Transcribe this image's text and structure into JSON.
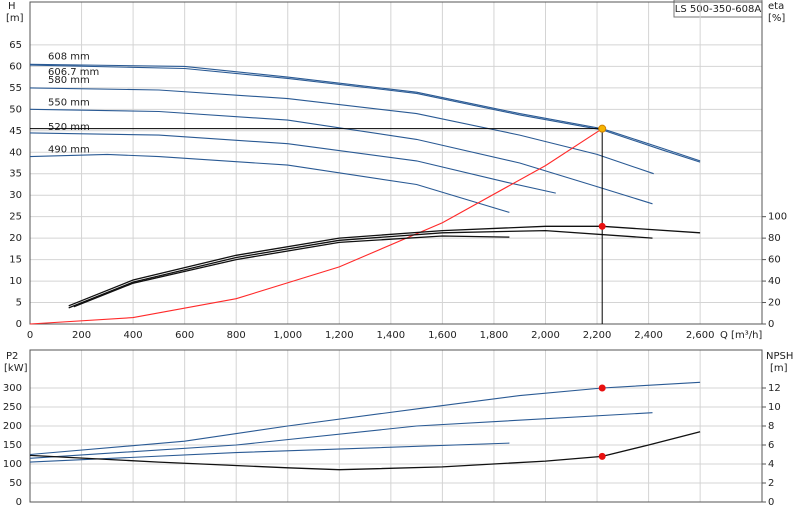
{
  "chart_data": [
    {
      "type": "line",
      "title": "LS 500-350-608A",
      "y_label": "H",
      "y_unit": "[m]",
      "y2_label": "eta",
      "y2_unit": "[%]",
      "x_label": "Q [m³/h]",
      "xlim": [
        0,
        2840
      ],
      "ylim": [
        0,
        75
      ],
      "y2lim": [
        0,
        300
      ],
      "xticks": [
        0,
        200,
        400,
        600,
        800,
        {
          "value": 1000,
          "label": "1,000"
        },
        {
          "value": 1200,
          "label": "1,200"
        },
        {
          "value": 1400,
          "label": "1,400"
        },
        {
          "value": 1600,
          "label": "1,600"
        },
        {
          "value": 1800,
          "label": "1,800"
        },
        {
          "value": 2000,
          "label": "2,000"
        },
        {
          "value": 2200,
          "label": "2,200"
        },
        {
          "value": 2400,
          "label": "2,400"
        },
        {
          "value": 2600,
          "label": "2,600"
        }
      ],
      "yticks": [
        0,
        5,
        10,
        15,
        20,
        25,
        30,
        35,
        40,
        45,
        50,
        55,
        60,
        65
      ],
      "y2ticks": [
        0,
        20,
        40,
        60,
        80,
        100
      ],
      "grid": true,
      "series": [
        {
          "name": "608 mm",
          "color": "#2a5a94",
          "x": [
            0,
            600,
            1000,
            1500,
            1900,
            2220,
            2450,
            2600
          ],
          "values": [
            60.5,
            60,
            57.5,
            54,
            49,
            45.5,
            41,
            38
          ]
        },
        {
          "name": "606.7 mm",
          "color": "#2a5a94",
          "x": [
            0,
            600,
            1000,
            1500,
            1900,
            2220,
            2450,
            2600
          ],
          "values": [
            60.3,
            59.5,
            57.2,
            53.7,
            48.7,
            45.2,
            40.6,
            37.7
          ]
        },
        {
          "name": "580 mm",
          "color": "#2a5a94",
          "x": [
            0,
            500,
            1000,
            1500,
            1900,
            2200,
            2420
          ],
          "values": [
            55,
            54.5,
            52.5,
            49,
            44,
            39.5,
            35
          ]
        },
        {
          "name": "550 mm",
          "color": "#2a5a94",
          "x": [
            0,
            500,
            1000,
            1500,
            1900,
            2200,
            2415
          ],
          "values": [
            50,
            49.5,
            47.5,
            43,
            37.5,
            32,
            28
          ]
        },
        {
          "name": "520 mm",
          "color": "#2a5a94",
          "x": [
            0,
            500,
            1000,
            1500,
            1850,
            2040
          ],
          "values": [
            44.5,
            44,
            42,
            38,
            33,
            30.5
          ]
        },
        {
          "name": "490 mm",
          "color": "#2a5a94",
          "x": [
            0,
            300,
            500,
            1000,
            1500,
            1860
          ],
          "values": [
            39,
            39.5,
            39,
            37,
            32.5,
            26
          ]
        },
        {
          "color": "#ff2a2a",
          "x": [
            0,
            400,
            800,
            1200,
            1600,
            2000,
            2220
          ],
          "values": [
            0,
            1.5,
            5.9,
            13.3,
            23.6,
            36.9,
            45.5
          ]
        },
        {
          "color": "#111111",
          "axis": "y2",
          "x": [
            150,
            400,
            800,
            1200,
            1600,
            2000,
            2220,
            2600
          ],
          "values": [
            17,
            41,
            64,
            80,
            87,
            91,
            91,
            85
          ]
        },
        {
          "color": "#111111",
          "axis": "y2",
          "x": [
            150,
            400,
            800,
            1200,
            1600,
            2000,
            2415
          ],
          "values": [
            15,
            39,
            62,
            78,
            85,
            87,
            80
          ]
        },
        {
          "color": "#111111",
          "axis": "y2",
          "x": [
            170,
            400,
            800,
            1200,
            1600,
            1860
          ],
          "values": [
            16,
            38,
            60,
            76,
            82,
            81
          ]
        }
      ],
      "operating_point": {
        "x": 2220,
        "y": 45.5,
        "y2": 91
      }
    },
    {
      "type": "line",
      "y_label": "P2",
      "y_unit": "[kW]",
      "y2_label": "NPSH",
      "y2_unit": "[m]",
      "xlim": [
        0,
        2840
      ],
      "ylim": [
        0,
        400
      ],
      "y2lim": [
        0,
        16
      ],
      "xticks": [
        0,
        200,
        400,
        600,
        800,
        1000,
        1200,
        1400,
        1600,
        1800,
        2000,
        2200,
        2400,
        2600
      ],
      "yticks": [
        0,
        50,
        100,
        150,
        200,
        250,
        300
      ],
      "y2ticks": [
        0,
        2,
        4,
        6,
        8,
        10,
        12
      ],
      "grid": true,
      "series": [
        {
          "color": "#2a5a94",
          "x": [
            0,
            600,
            1000,
            1500,
            1900,
            2220,
            2600
          ],
          "values": [
            125,
            160,
            200,
            245,
            280,
            300,
            315
          ]
        },
        {
          "color": "#2a5a94",
          "x": [
            0,
            800,
            1500,
            2415
          ],
          "values": [
            115,
            150,
            200,
            235
          ]
        },
        {
          "color": "#2a5a94",
          "x": [
            0,
            800,
            1860
          ],
          "values": [
            105,
            130,
            155
          ]
        },
        {
          "color": "#111111",
          "axis": "y2",
          "x": [
            0,
            500,
            1000,
            1200,
            1600,
            2000,
            2220,
            2400,
            2600
          ],
          "values": [
            4.9,
            4.2,
            3.6,
            3.4,
            3.7,
            4.3,
            4.8,
            6,
            7.4
          ]
        }
      ],
      "operating_point": {
        "x": 2220,
        "y": 300,
        "y2": 4.8
      }
    }
  ]
}
